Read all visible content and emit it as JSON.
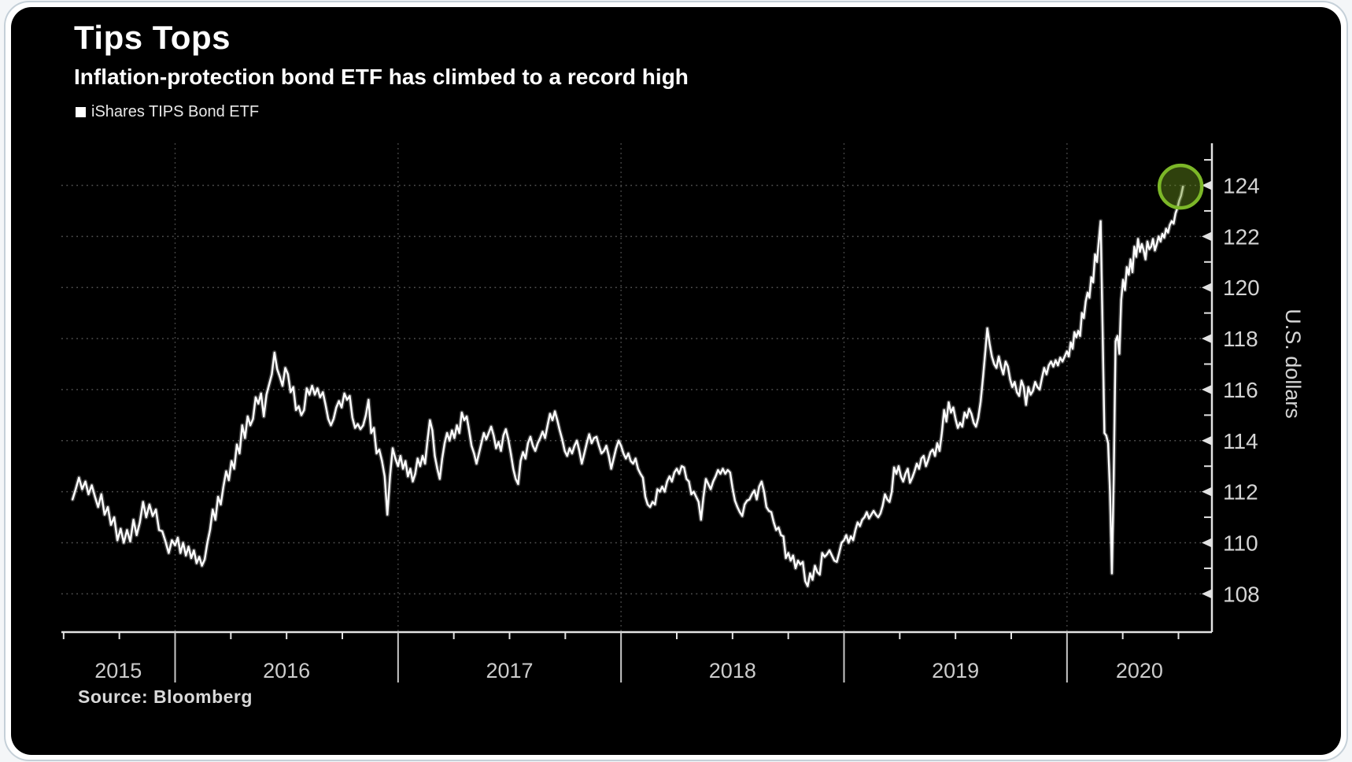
{
  "header": {
    "title": "Tips Tops",
    "subtitle": "Inflation-protection bond ETF has climbed to a record high"
  },
  "legend": {
    "label": "iShares TIPS Bond ETF",
    "marker_color": "#ffffff"
  },
  "source": {
    "text": "Source: Bloomberg"
  },
  "colors": {
    "background": "#000000",
    "line": "#ffffff",
    "grid_h": "#666666",
    "grid_v": "#4a4a4a",
    "axis": "#e2e2e2",
    "tick_label": "#d4d4d4",
    "year_label": "#cccccc",
    "highlight_ring": "#7cb728",
    "highlight_fill": "rgba(105,145,28,0.45)"
  },
  "chart_data": {
    "type": "line",
    "title": "Tips Tops",
    "subtitle": "Inflation-protection bond ETF has climbed to a record high",
    "series_name": "iShares TIPS Bond ETF",
    "ylabel": "U.S. dollars",
    "xlabel": "",
    "grid": "dotted",
    "legend_position": "top-left",
    "x_domain": [
      2015.49,
      2020.65
    ],
    "y_domain": [
      106.5,
      125.65
    ],
    "y_ticks_major": [
      108,
      110,
      112,
      114,
      116,
      118,
      120,
      122,
      124
    ],
    "y_ticks_minor": [
      109,
      111,
      113,
      115,
      117,
      119,
      121,
      123,
      125
    ],
    "x_year_boundaries": [
      2016,
      2017,
      2018,
      2019,
      2020
    ],
    "x_quarter_tick_range": [
      2015.5,
      2020.5
    ],
    "year_labels": [
      "2015",
      "2016",
      "2017",
      "2018",
      "2019",
      "2020"
    ],
    "end_highlight": {
      "shape": "circle",
      "value": 123.95
    },
    "segments": [
      {
        "t0": 2015.54,
        "t1": 2016.0,
        "values": [
          111.7,
          112.1,
          112.55,
          112.1,
          112.4,
          111.9,
          112.25,
          111.8,
          111.4,
          111.9,
          111.1,
          111.4,
          110.7,
          111.0,
          110.1,
          110.55,
          110.0,
          110.5,
          110.05,
          110.9,
          110.3,
          110.8,
          111.6,
          111.0,
          111.5,
          111.05,
          111.3,
          110.5,
          110.45,
          110.05,
          109.6,
          110.1
        ]
      },
      {
        "t0": 2016.0,
        "t1": 2017.0,
        "values": [
          109.9,
          110.2,
          109.6,
          110.0,
          109.5,
          109.85,
          109.4,
          109.7,
          109.2,
          109.45,
          109.1,
          109.35,
          110.0,
          110.5,
          111.3,
          110.9,
          111.8,
          111.5,
          112.2,
          112.8,
          112.45,
          113.2,
          112.9,
          113.85,
          113.5,
          114.6,
          114.1,
          114.95,
          114.6,
          114.85,
          115.7,
          115.45,
          115.85,
          114.95,
          115.8,
          116.2,
          116.6,
          117.45,
          116.8,
          116.5,
          116.15,
          116.85,
          116.6,
          115.9,
          116.1,
          115.2,
          115.35,
          115.0,
          115.2,
          116.05,
          115.8,
          116.15,
          115.8,
          116.05,
          115.7,
          115.9,
          115.4,
          114.85,
          114.6,
          114.85,
          115.3,
          115.55,
          115.3,
          115.85,
          115.6,
          115.75,
          114.9,
          114.5,
          114.65,
          114.45,
          114.6,
          115.0,
          115.6,
          114.3,
          114.5,
          113.5,
          113.65,
          113.2,
          112.6,
          111.1,
          112.6,
          113.7,
          113.3
        ]
      },
      {
        "t0": 2017.0,
        "t1": 2018.0,
        "values": [
          113.0,
          113.4,
          112.9,
          113.2,
          112.6,
          112.9,
          112.4,
          112.7,
          113.3,
          113.0,
          113.4,
          113.1,
          114.0,
          114.8,
          114.4,
          113.4,
          112.9,
          112.5,
          113.3,
          113.9,
          114.3,
          114.0,
          114.4,
          114.1,
          114.6,
          114.3,
          115.1,
          114.8,
          114.95,
          114.4,
          113.8,
          113.5,
          113.1,
          113.5,
          113.9,
          114.3,
          114.05,
          114.3,
          114.55,
          114.2,
          113.7,
          113.95,
          113.6,
          114.2,
          114.45,
          114.05,
          113.5,
          112.9,
          112.5,
          112.3,
          113.2,
          113.55,
          113.3,
          113.9,
          114.15,
          113.8,
          113.6,
          113.9,
          114.1,
          114.35,
          114.1,
          114.6,
          115.05,
          114.8,
          115.15,
          114.8,
          114.4,
          114.05,
          113.6,
          113.4,
          113.7,
          113.5,
          113.8,
          114.0,
          113.6,
          113.1,
          113.5,
          113.9,
          114.25,
          113.9,
          114.1,
          114.15,
          113.8,
          113.5,
          113.6,
          113.8,
          113.4,
          112.9,
          113.3,
          113.7,
          114.0
        ]
      },
      {
        "t0": 2018.0,
        "t1": 2019.0,
        "values": [
          113.8,
          113.5,
          113.3,
          113.5,
          113.2,
          113.1,
          113.3,
          112.9,
          112.7,
          112.55,
          111.8,
          111.5,
          111.4,
          111.6,
          111.5,
          112.1,
          112.0,
          112.2,
          112.0,
          112.4,
          112.6,
          112.4,
          112.75,
          112.9,
          112.7,
          113.0,
          112.95,
          112.5,
          112.4,
          111.9,
          112.0,
          111.8,
          111.6,
          110.9,
          111.8,
          112.5,
          112.3,
          112.1,
          112.4,
          112.6,
          112.85,
          112.7,
          112.9,
          112.7,
          112.85,
          112.75,
          112.15,
          111.65,
          111.4,
          111.2,
          111.05,
          111.5,
          111.65,
          111.7,
          111.9,
          112.05,
          111.7,
          112.2,
          112.4,
          112.0,
          111.4,
          111.25,
          111.2,
          110.8,
          110.5,
          110.6,
          110.3,
          110.25,
          109.4,
          109.6,
          109.3,
          109.5,
          109.0,
          109.3,
          109.15,
          109.25,
          108.5,
          108.3,
          108.8,
          108.55,
          109.1,
          108.85,
          108.75,
          109.6,
          109.45,
          109.55,
          109.7,
          109.5,
          109.3,
          109.25,
          109.6,
          110.0
        ]
      },
      {
        "t0": 2019.0,
        "t1": 2020.0,
        "values": [
          110.1,
          110.3,
          110.0,
          110.25,
          110.1,
          110.5,
          110.8,
          110.65,
          110.9,
          111.0,
          111.2,
          110.95,
          111.1,
          111.25,
          111.1,
          111.0,
          111.15,
          111.45,
          111.9,
          111.7,
          111.6,
          112.0,
          112.95,
          112.7,
          113.0,
          112.6,
          112.4,
          112.7,
          112.9,
          112.35,
          112.55,
          112.8,
          113.1,
          112.9,
          113.3,
          113.4,
          113.0,
          113.25,
          113.55,
          113.65,
          113.4,
          113.9,
          113.6,
          114.3,
          115.2,
          114.75,
          115.5,
          115.1,
          115.3,
          114.85,
          114.5,
          114.7,
          114.55,
          115.1,
          114.9,
          115.25,
          115.05,
          114.7,
          114.55,
          114.9,
          115.5,
          116.4,
          117.4,
          118.4,
          117.8,
          117.3,
          117.0,
          116.85,
          117.3,
          116.9,
          116.6,
          117.1,
          116.9,
          116.4,
          116.1,
          116.3,
          115.9,
          115.75,
          116.35,
          116.1,
          115.4,
          116.1,
          115.8,
          115.95,
          116.3,
          116.1,
          116.0,
          116.45,
          116.85,
          116.6,
          116.95,
          117.1,
          116.9,
          117.15,
          116.95,
          117.25,
          117.1,
          117.3
        ]
      },
      {
        "t0": 2020.0,
        "t1": 2020.52,
        "values": [
          117.5,
          117.3,
          117.85,
          117.6,
          118.25,
          118.05,
          118.3,
          118.1,
          119.0,
          118.8,
          119.45,
          119.8,
          119.6,
          120.4,
          120.2,
          121.3,
          121.0,
          121.8,
          122.6,
          118.5,
          114.3,
          114.2,
          113.9,
          112.0,
          108.8,
          112.5,
          117.9,
          118.1,
          117.4,
          119.5,
          120.3,
          119.9,
          120.8,
          120.5,
          121.1,
          120.6,
          121.6,
          121.2,
          121.9,
          121.4,
          121.7,
          121.45,
          121.1,
          121.8,
          121.5,
          121.6,
          121.9,
          121.45,
          121.7,
          122.0,
          121.8,
          122.1,
          121.95,
          122.3,
          122.15,
          122.45,
          122.6,
          122.5,
          122.9,
          123.1,
          123.4,
          123.6,
          123.95
        ]
      }
    ]
  }
}
